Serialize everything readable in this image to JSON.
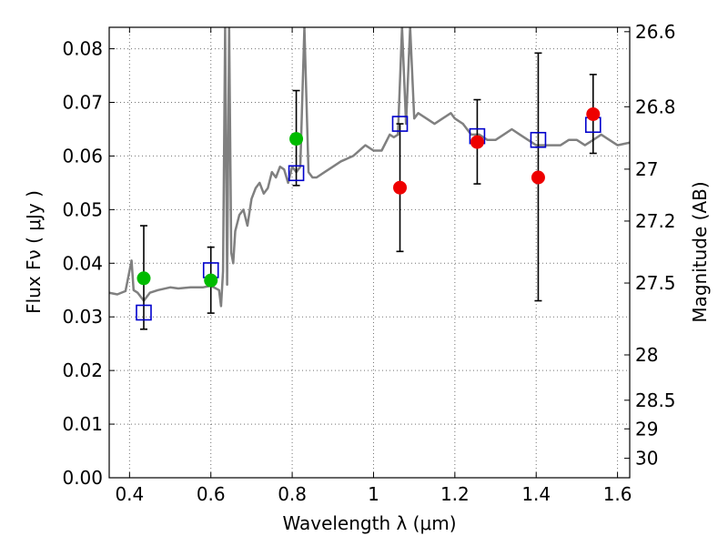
{
  "chart_data": {
    "type": "scatter",
    "xlabel": "Wavelength  λ (μm)",
    "ylabel": "Flux  Fν  ( μJy )",
    "y2label": "Magnitude (AB)",
    "xlim": [
      0.35,
      1.63
    ],
    "ylim": [
      0.0,
      0.084
    ],
    "grid": true,
    "x_ticks": [
      {
        "value": 0.4,
        "label": "0.4"
      },
      {
        "value": 0.6,
        "label": "0.6"
      },
      {
        "value": 0.8,
        "label": "0.8"
      },
      {
        "value": 1.0,
        "label": "1"
      },
      {
        "value": 1.2,
        "label": "1.2"
      },
      {
        "value": 1.4,
        "label": "1.4"
      },
      {
        "value": 1.6,
        "label": "1.6"
      }
    ],
    "y_ticks": [
      {
        "value": 0.0,
        "label": "0.00"
      },
      {
        "value": 0.01,
        "label": "0.01"
      },
      {
        "value": 0.02,
        "label": "0.02"
      },
      {
        "value": 0.03,
        "label": "0.03"
      },
      {
        "value": 0.04,
        "label": "0.04"
      },
      {
        "value": 0.05,
        "label": "0.05"
      },
      {
        "value": 0.06,
        "label": "0.06"
      },
      {
        "value": 0.07,
        "label": "0.07"
      },
      {
        "value": 0.08,
        "label": "0.08"
      }
    ],
    "y2_ticks": [
      {
        "mag": 26.6,
        "label": "26.6"
      },
      {
        "mag": 26.8,
        "label": "26.8"
      },
      {
        "mag": 27.0,
        "label": "27"
      },
      {
        "mag": 27.2,
        "label": "27.2"
      },
      {
        "mag": 27.5,
        "label": "27.5"
      },
      {
        "mag": 28.0,
        "label": "28"
      },
      {
        "mag": 28.5,
        "label": "28.5"
      },
      {
        "mag": 29.0,
        "label": "29"
      },
      {
        "mag": 30.0,
        "label": "30"
      }
    ],
    "colors": {
      "spectrum": "#808080",
      "model": "#0000cc",
      "optical": "#00bb00",
      "infrared": "#ee0000",
      "errorbar": "#000000"
    },
    "series": [
      {
        "kind": "line",
        "color": "#808080",
        "x": [
          0.35,
          0.37,
          0.39,
          0.405,
          0.41,
          0.42,
          0.43,
          0.435,
          0.45,
          0.47,
          0.5,
          0.52,
          0.55,
          0.58,
          0.6,
          0.62,
          0.625,
          0.63,
          0.635,
          0.64,
          0.645,
          0.65,
          0.655,
          0.66,
          0.67,
          0.68,
          0.69,
          0.7,
          0.71,
          0.72,
          0.73,
          0.74,
          0.75,
          0.76,
          0.77,
          0.78,
          0.79,
          0.8,
          0.81,
          0.82,
          0.83,
          0.84,
          0.85,
          0.86,
          0.88,
          0.9,
          0.92,
          0.95,
          0.98,
          1.0,
          1.02,
          1.04,
          1.05,
          1.06,
          1.07,
          1.08,
          1.09,
          1.1,
          1.11,
          1.13,
          1.15,
          1.17,
          1.19,
          1.2,
          1.22,
          1.24,
          1.26,
          1.28,
          1.3,
          1.32,
          1.34,
          1.36,
          1.38,
          1.4,
          1.42,
          1.44,
          1.46,
          1.48,
          1.5,
          1.52,
          1.54,
          1.56,
          1.58,
          1.6,
          1.63
        ],
        "y": [
          0.0345,
          0.0342,
          0.0348,
          0.0405,
          0.035,
          0.0345,
          0.0335,
          0.033,
          0.0345,
          0.035,
          0.0355,
          0.0353,
          0.0355,
          0.0355,
          0.0358,
          0.035,
          0.032,
          0.0385,
          0.084,
          0.036,
          0.084,
          0.042,
          0.04,
          0.046,
          0.049,
          0.05,
          0.047,
          0.052,
          0.054,
          0.055,
          0.053,
          0.054,
          0.057,
          0.056,
          0.058,
          0.0575,
          0.055,
          0.058,
          0.057,
          0.058,
          0.084,
          0.057,
          0.056,
          0.056,
          0.057,
          0.058,
          0.059,
          0.06,
          0.062,
          0.061,
          0.061,
          0.064,
          0.0635,
          0.064,
          0.084,
          0.066,
          0.084,
          0.067,
          0.068,
          0.067,
          0.066,
          0.067,
          0.068,
          0.067,
          0.066,
          0.064,
          0.064,
          0.063,
          0.063,
          0.064,
          0.065,
          0.064,
          0.063,
          0.062,
          0.062,
          0.062,
          0.062,
          0.063,
          0.063,
          0.062,
          0.063,
          0.064,
          0.063,
          0.062,
          0.0625
        ]
      },
      {
        "kind": "open-square",
        "color": "#0000cc",
        "x": [
          0.435,
          0.6,
          0.81,
          1.065,
          1.255,
          1.405,
          1.54
        ],
        "y": [
          0.0308,
          0.0387,
          0.0568,
          0.066,
          0.0637,
          0.063,
          0.0658
        ]
      },
      {
        "kind": "filled-circle",
        "color": "#00bb00",
        "x": [
          0.435,
          0.6,
          0.81
        ],
        "y": [
          0.0372,
          0.0368,
          0.0632
        ],
        "yerr_low": [
          0.0277,
          0.0307,
          0.0545
        ],
        "yerr_high": [
          0.047,
          0.043,
          0.0722
        ]
      },
      {
        "kind": "filled-circle",
        "color": "#ee0000",
        "x": [
          1.065,
          1.255,
          1.405,
          1.54
        ],
        "y": [
          0.0541,
          0.0626,
          0.056,
          0.0678
        ],
        "yerr_low": [
          0.0422,
          0.0548,
          0.033,
          0.0605
        ],
        "yerr_high": [
          0.066,
          0.0705,
          0.0792,
          0.0752
        ]
      }
    ]
  }
}
